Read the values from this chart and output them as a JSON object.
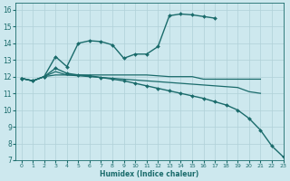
{
  "background_color": "#cde8ee",
  "grid_color": "#b0d0d8",
  "line_color": "#1a6b6b",
  "xlabel": "Humidex (Indice chaleur)",
  "xlim": [
    -0.5,
    23
  ],
  "ylim": [
    7,
    16.4
  ],
  "yticks": [
    7,
    8,
    9,
    10,
    11,
    12,
    13,
    14,
    15,
    16
  ],
  "xticks": [
    0,
    1,
    2,
    3,
    4,
    5,
    6,
    7,
    8,
    9,
    10,
    11,
    12,
    13,
    14,
    15,
    16,
    17,
    18,
    19,
    20,
    21,
    22,
    23
  ],
  "series": [
    {
      "x": [
        0,
        1,
        2,
        3,
        4,
        5,
        6,
        7,
        8,
        9,
        10,
        11,
        12,
        13,
        14,
        15,
        16,
        17
      ],
      "y": [
        11.9,
        11.75,
        12.0,
        13.2,
        12.6,
        14.0,
        14.15,
        14.1,
        13.9,
        13.1,
        13.35,
        13.35,
        13.8,
        15.65,
        15.75,
        15.7,
        15.6,
        15.5
      ],
      "marker": "D",
      "markersize": 2.0,
      "linewidth": 1.0
    },
    {
      "x": [
        0,
        1,
        2,
        3,
        4,
        5,
        6,
        7,
        8,
        9,
        10,
        11,
        12,
        13,
        14,
        15,
        16,
        17,
        18,
        19,
        20,
        21
      ],
      "y": [
        11.9,
        11.75,
        12.0,
        12.1,
        12.1,
        12.1,
        12.1,
        12.1,
        12.1,
        12.1,
        12.1,
        12.1,
        12.05,
        12.0,
        12.0,
        12.0,
        11.85,
        11.85,
        11.85,
        11.85,
        11.85,
        11.85
      ],
      "marker": null,
      "markersize": 0,
      "linewidth": 0.9
    },
    {
      "x": [
        0,
        1,
        2,
        3,
        4,
        5,
        6,
        7,
        8,
        9,
        10,
        11,
        12,
        13,
        14,
        15,
        16,
        17,
        18,
        19,
        20,
        21,
        22,
        23
      ],
      "y": [
        11.9,
        11.75,
        12.0,
        12.5,
        12.2,
        12.1,
        12.05,
        11.95,
        11.85,
        11.75,
        11.6,
        11.45,
        11.3,
        11.15,
        11.0,
        10.85,
        10.7,
        10.5,
        10.3,
        10.0,
        9.5,
        8.8,
        7.85,
        7.2
      ],
      "marker": "D",
      "markersize": 2.0,
      "linewidth": 1.0
    },
    {
      "x": [
        0,
        1,
        2,
        3,
        4,
        5,
        6,
        7,
        8,
        9,
        10,
        11,
        12,
        13,
        14,
        15,
        16,
        17,
        18,
        19,
        20,
        21
      ],
      "y": [
        11.9,
        11.75,
        12.0,
        12.3,
        12.1,
        12.05,
        12.0,
        11.95,
        11.9,
        11.85,
        11.8,
        11.75,
        11.7,
        11.65,
        11.6,
        11.55,
        11.5,
        11.45,
        11.4,
        11.35,
        11.1,
        11.0
      ],
      "marker": null,
      "markersize": 0,
      "linewidth": 0.9
    }
  ]
}
